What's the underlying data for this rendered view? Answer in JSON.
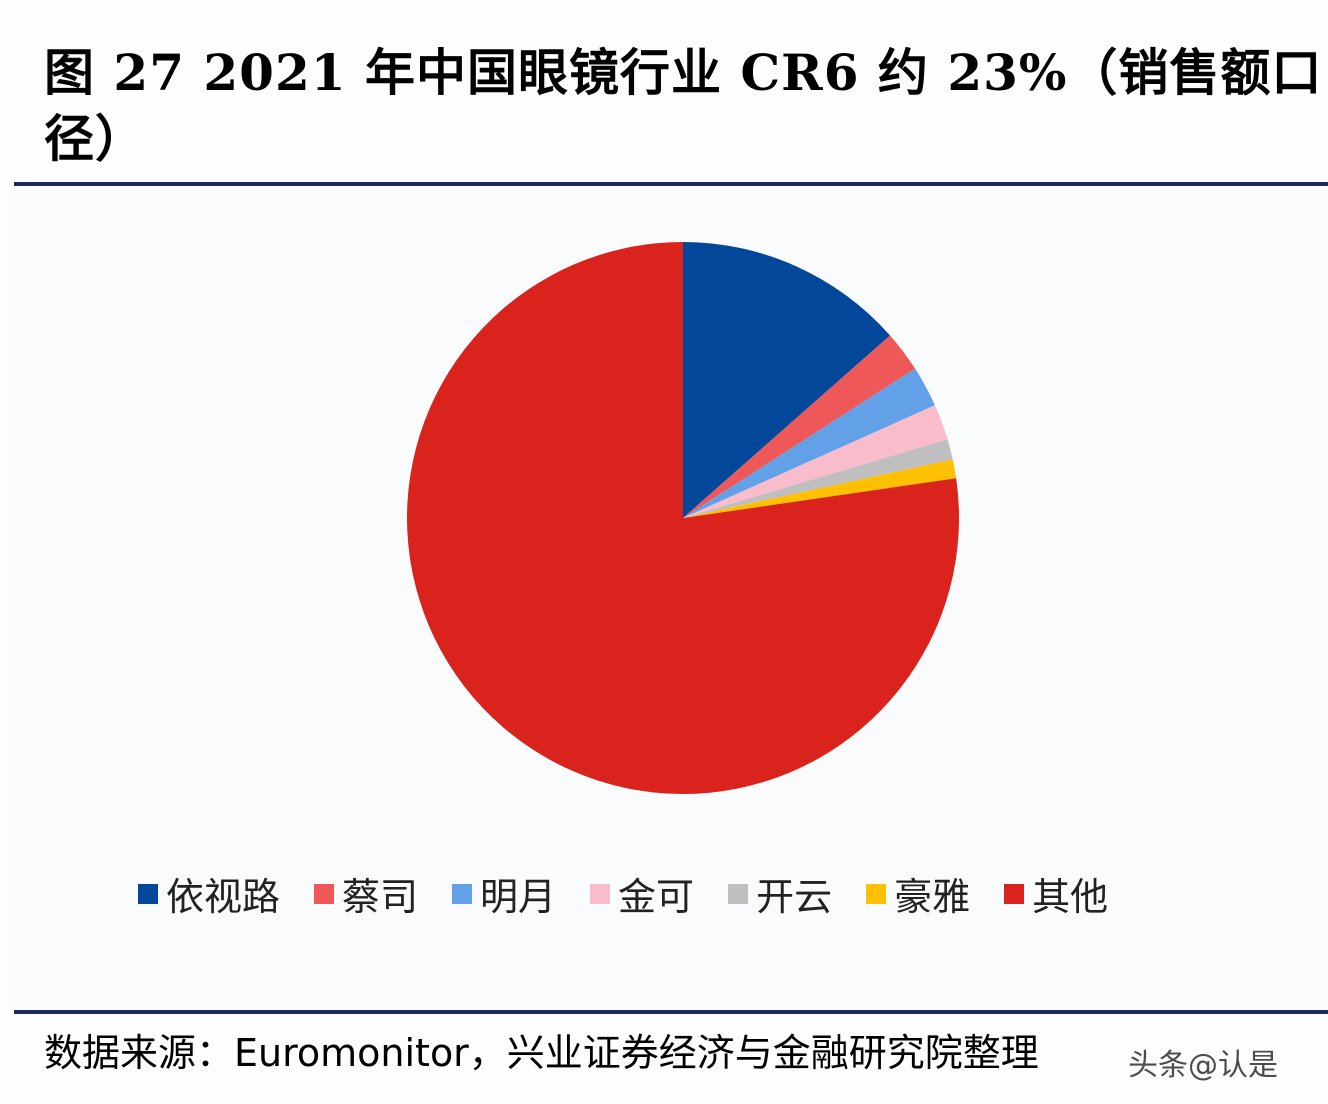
{
  "title": "图 27  2021 年中国眼镜行业 CR6 约 23%（销售额口径）",
  "source": "数据来源：Euromonitor，兴业证券经济与金融研究院整理",
  "watermark": "头条@认是",
  "chart_data": {
    "type": "pie",
    "title": "2021 年中国眼镜行业 CR6 约 23%（销售额口径）",
    "categories": [
      "依视路",
      "蔡司",
      "明月",
      "金可",
      "开云",
      "豪雅",
      "其他"
    ],
    "values": [
      13.5,
      2.4,
      2.4,
      2.1,
      1.2,
      1.1,
      77.3
    ],
    "unit": "%",
    "colors": [
      "#03479a",
      "#ee5858",
      "#62a0e8",
      "#f9bcca",
      "#bfbfbf",
      "#fec000",
      "#d9231c"
    ],
    "start_angle": "12 o'clock, clockwise",
    "legend_position": "bottom",
    "data_labels": false
  },
  "legend": [
    {
      "label": "依视路",
      "color": "#03479a"
    },
    {
      "label": "蔡司",
      "color": "#ee5858"
    },
    {
      "label": "明月",
      "color": "#62a0e8"
    },
    {
      "label": "金可",
      "color": "#f9bcca"
    },
    {
      "label": "开云",
      "color": "#bfbfbf"
    },
    {
      "label": "豪雅",
      "color": "#fec000"
    },
    {
      "label": "其他",
      "color": "#d9231c"
    }
  ]
}
